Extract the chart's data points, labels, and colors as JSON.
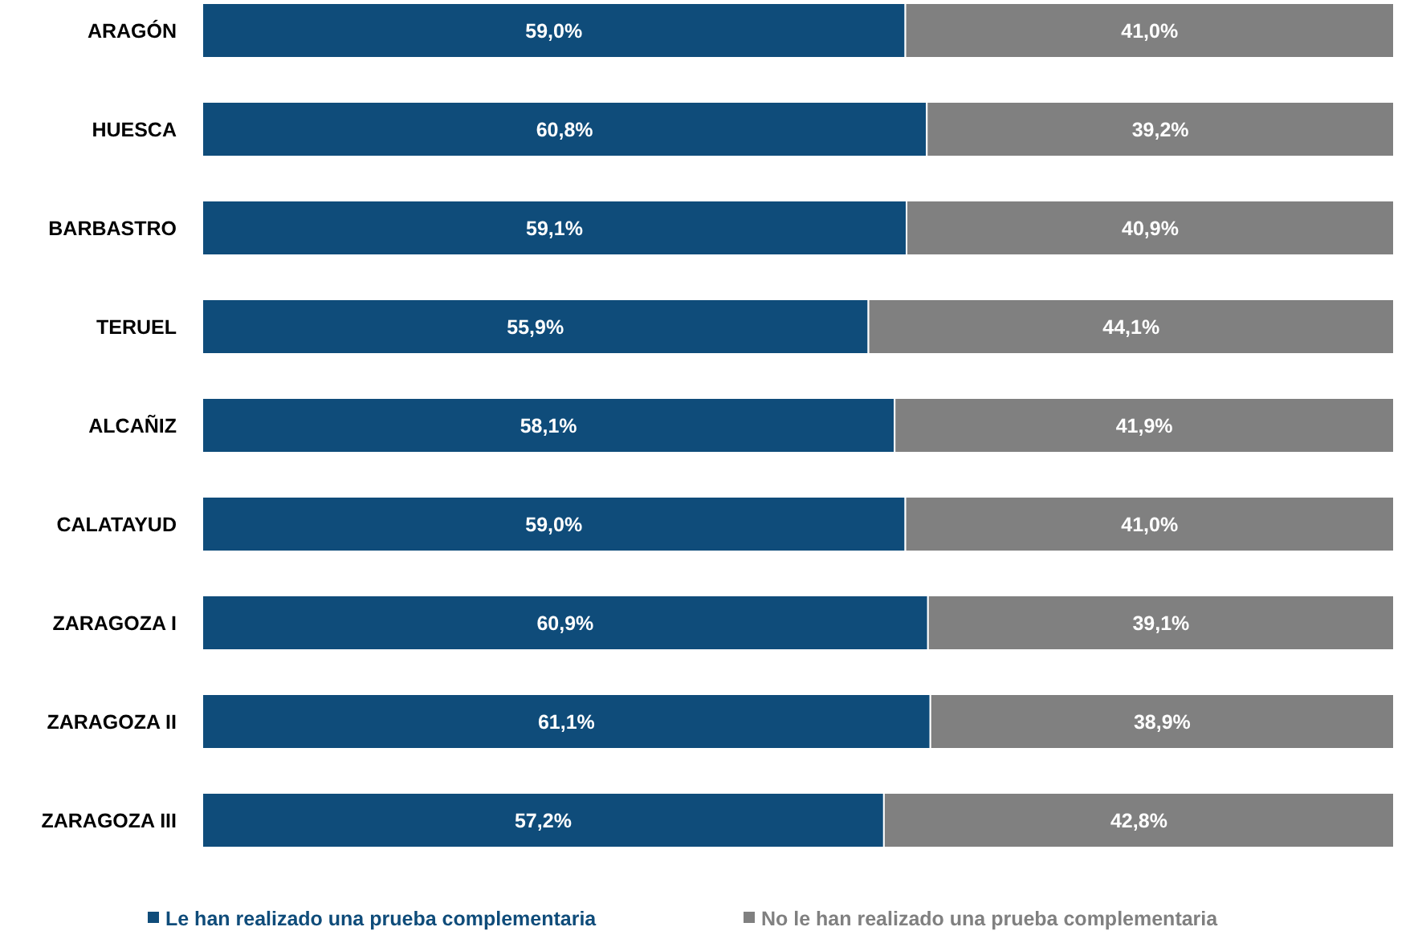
{
  "chart_data": {
    "type": "bar",
    "orientation": "horizontal",
    "stacked": true,
    "legend": "bottom",
    "xlim": [
      0,
      100
    ],
    "tick_labels": "y",
    "categories": [
      "ARAGÓN",
      "HUESCA",
      "BARBASTRO",
      "TERUEL",
      "ALCAÑIZ",
      "CALATAYUD",
      "ZARAGOZA I",
      "ZARAGOZA II",
      "ZARAGOZA III"
    ],
    "series": [
      {
        "name": "Le han realizado una prueba complementaria",
        "color": "#0f4c7a",
        "values": [
          59.0,
          60.8,
          59.1,
          55.9,
          58.1,
          59.0,
          60.9,
          61.1,
          57.2
        ],
        "value_labels": [
          "59,0%",
          "60,8%",
          "59,1%",
          "55,9%",
          "58,1%",
          "59,0%",
          "60,9%",
          "61,1%",
          "57,2%"
        ]
      },
      {
        "name": "No le han realizado una prueba complementaria",
        "color": "#808080",
        "values": [
          41.0,
          39.2,
          40.9,
          44.1,
          41.9,
          41.0,
          39.1,
          38.9,
          42.8
        ],
        "value_labels": [
          "41,0%",
          "39,2%",
          "40,9%",
          "44,1%",
          "41,9%",
          "41,0%",
          "39,1%",
          "38,9%",
          "42,8%"
        ]
      }
    ]
  }
}
